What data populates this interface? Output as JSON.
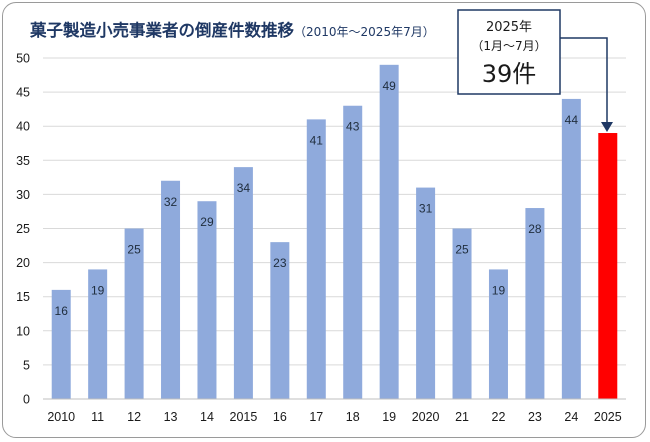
{
  "chart_data": {
    "type": "bar",
    "title": "菓子製造小売事業者の倒産件数推移",
    "subtitle": "（2010年～2025年7月）",
    "categories": [
      "2010",
      "11",
      "12",
      "13",
      "14",
      "2015",
      "16",
      "17",
      "18",
      "19",
      "2020",
      "21",
      "22",
      "23",
      "24",
      "2025"
    ],
    "values": [
      16,
      19,
      25,
      32,
      29,
      34,
      23,
      41,
      43,
      49,
      31,
      25,
      19,
      28,
      44,
      39
    ],
    "data_labels": [
      "16",
      "19",
      "25",
      "32",
      "29",
      "34",
      "23",
      "41",
      "43",
      "49",
      "31",
      "25",
      "19",
      "28",
      "44",
      ""
    ],
    "ylim": [
      0,
      50
    ],
    "yticks": [
      0,
      5,
      10,
      15,
      20,
      25,
      30,
      35,
      40,
      45,
      50
    ],
    "grid": true,
    "xlabel": "",
    "ylabel": "",
    "colors": {
      "bar": "#8faadc",
      "highlight": "#ff0000",
      "grid": "#d9d9d9",
      "callout_border": "#1f3864",
      "arrow": "#1f3864"
    },
    "highlight_index": 15,
    "callout": {
      "line1": "2025年",
      "line2": "（1月～7月）",
      "line3": "39件"
    }
  }
}
